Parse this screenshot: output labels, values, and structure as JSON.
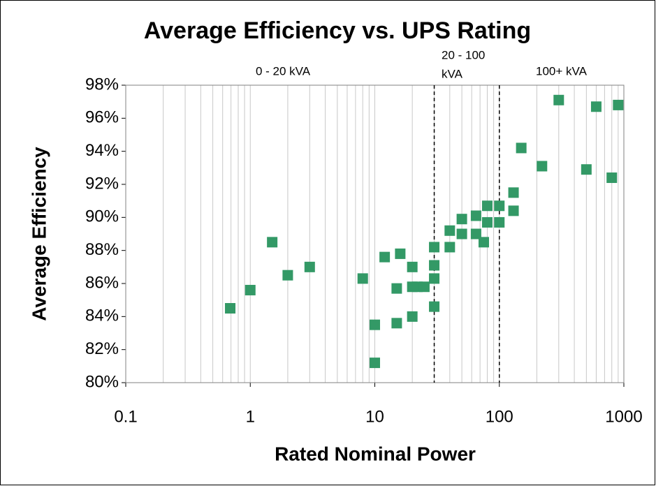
{
  "chart_data": {
    "type": "scatter",
    "title": "Average Efficiency vs. UPS Rating",
    "x_label": "Rated Nominal Power",
    "y_label": "Average Efficiency",
    "log_x": true,
    "grid": true,
    "color": "#339966",
    "xlim": [
      0.1,
      1000
    ],
    "xticks": [
      0.1,
      1,
      10,
      100,
      1000
    ],
    "ylim": [
      80,
      98
    ],
    "yticks": [
      {
        "value": 80,
        "label": "80%"
      },
      {
        "value": 82,
        "label": "82%"
      },
      {
        "value": 84,
        "label": "84%"
      },
      {
        "value": 86,
        "label": "86%"
      },
      {
        "value": 88,
        "label": "88%"
      },
      {
        "value": 90,
        "label": "90%"
      },
      {
        "value": 92,
        "label": "92%"
      },
      {
        "value": 94,
        "label": "94%"
      },
      {
        "value": 96,
        "label": "96%"
      },
      {
        "value": 98,
        "label": "98%"
      }
    ],
    "vlines": [
      30,
      100
    ],
    "region_labels": [
      [
        "0 - 20 kVA"
      ],
      [
        "20 - 100",
        "kVA"
      ],
      [
        "100+ kVA"
      ]
    ],
    "x": [
      0.69,
      1,
      1.5,
      2,
      3,
      8,
      10,
      10,
      12,
      15,
      15,
      16,
      20,
      20,
      20,
      22,
      25,
      30,
      30,
      30,
      30,
      40,
      40,
      50,
      50,
      65,
      65,
      75,
      80,
      80,
      100,
      100,
      130,
      130,
      150,
      220,
      300,
      500,
      600,
      800,
      900
    ],
    "values": [
      84.5,
      85.6,
      88.5,
      86.5,
      87.0,
      86.3,
      83.5,
      81.2,
      87.6,
      85.7,
      83.6,
      87.8,
      87.0,
      85.8,
      84.0,
      85.8,
      85.8,
      88.2,
      87.1,
      86.3,
      84.6,
      89.2,
      88.2,
      89.9,
      89.0,
      90.1,
      89.0,
      88.5,
      90.7,
      89.7,
      90.7,
      89.7,
      91.5,
      90.4,
      94.2,
      93.1,
      97.1,
      92.9,
      96.7,
      92.4,
      96.8
    ]
  }
}
